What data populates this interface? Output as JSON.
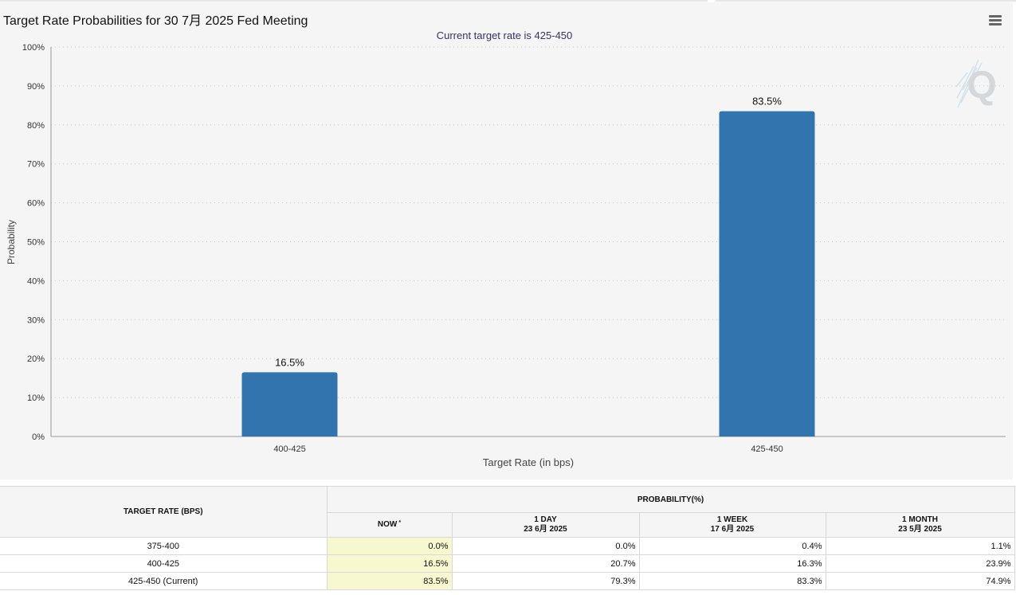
{
  "chart_title": "Target Rate Probabilities for 30 7月 2025 Fed Meeting",
  "icons": {
    "menu": "hamburger-menu-icon",
    "watermark": "q-logo-icon"
  },
  "colors": {
    "bar": "#3274ad",
    "grid": "#c8c8c8",
    "subtitle": "#333366",
    "now_column": "#f8f8d0"
  },
  "chart_data": {
    "type": "bar",
    "title": "Target Rate Probabilities for 30 7月 2025 Fed Meeting",
    "subtitle": "Current target rate is 425-450",
    "xlabel": "Target Rate (in bps)",
    "ylabel": "Probability",
    "categories": [
      "400-425",
      "425-450"
    ],
    "values": [
      16.5,
      83.5
    ],
    "data_labels": [
      "16.5%",
      "83.5%"
    ],
    "ylim": [
      0,
      100
    ],
    "yticks": [
      0,
      10,
      20,
      30,
      40,
      50,
      60,
      70,
      80,
      90,
      100
    ],
    "ytick_labels": [
      "0%",
      "10%",
      "20%",
      "30%",
      "40%",
      "50%",
      "60%",
      "70%",
      "80%",
      "90%",
      "100%"
    ],
    "grid": true,
    "legend": "none"
  },
  "table": {
    "target_rate_header": "TARGET RATE (BPS)",
    "probability_header": "PROBABILITY(%)",
    "columns": [
      {
        "label": "NOW",
        "sup": "*",
        "date": ""
      },
      {
        "label": "1 DAY",
        "sup": "",
        "date": "23 6月 2025"
      },
      {
        "label": "1 WEEK",
        "sup": "",
        "date": "17 6月 2025"
      },
      {
        "label": "1 MONTH",
        "sup": "",
        "date": "23 5月 2025"
      }
    ],
    "rows": [
      {
        "rate": "375-400",
        "values": [
          "0.0%",
          "0.0%",
          "0.4%",
          "1.1%"
        ]
      },
      {
        "rate": "400-425",
        "values": [
          "16.5%",
          "20.7%",
          "16.3%",
          "23.9%"
        ]
      },
      {
        "rate": "425-450 (Current)",
        "values": [
          "83.5%",
          "79.3%",
          "83.3%",
          "74.9%"
        ]
      }
    ]
  }
}
